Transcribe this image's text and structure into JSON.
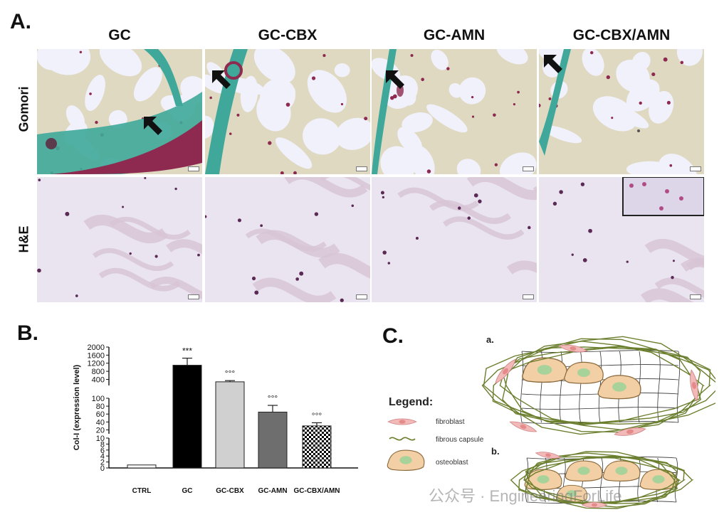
{
  "panels": {
    "a": "A.",
    "b": "B.",
    "c": "C."
  },
  "columns": [
    "GC",
    "GC-CBX",
    "GC-AMN",
    "GC-CBX/AMN"
  ],
  "rows": [
    "Gomori",
    "H&E"
  ],
  "colors": {
    "collagen_green": "#3fa89a",
    "muscle_red": "#8e2a4f",
    "scaffold_beige": "#ddd6b8",
    "he_pink": "#d7c3d4",
    "capsule_green": "#6b7f2e",
    "osteoblast_fill": "#f3cfa5",
    "fibroblast_fill": "#f2b9b9"
  },
  "chart_data": {
    "type": "bar",
    "ylabel": "Col-I (expression level)",
    "categories": [
      "CTRL",
      "GC",
      "GC-CBX",
      "GC-AMN",
      "GC-CBX/AMN"
    ],
    "values": [
      1,
      1100,
      280,
      65,
      30
    ],
    "errors": [
      0,
      350,
      60,
      17,
      8
    ],
    "significance": [
      "",
      "***",
      "°°°",
      "°°°",
      "°°°"
    ],
    "fills": [
      "#ffffff",
      "#000000",
      "#d0d0d0",
      "#6e6e6e",
      "checker"
    ],
    "y_breaks": [
      {
        "range": [
          0,
          10
        ],
        "ticks": [
          0,
          2,
          4,
          6,
          8,
          10
        ]
      },
      {
        "range": [
          10,
          100
        ],
        "ticks": [
          20,
          40,
          60,
          80,
          100
        ]
      },
      {
        "range": [
          100,
          2000
        ],
        "ticks": [
          400,
          800,
          1200,
          1600,
          2000
        ]
      }
    ]
  },
  "legend": {
    "title": "Legend:",
    "items": [
      "fibroblast",
      "fibrous capsule",
      "osteoblast"
    ]
  },
  "diagram_labels": [
    "a.",
    "b."
  ],
  "watermark": "公众号 · EngineeringForLife"
}
